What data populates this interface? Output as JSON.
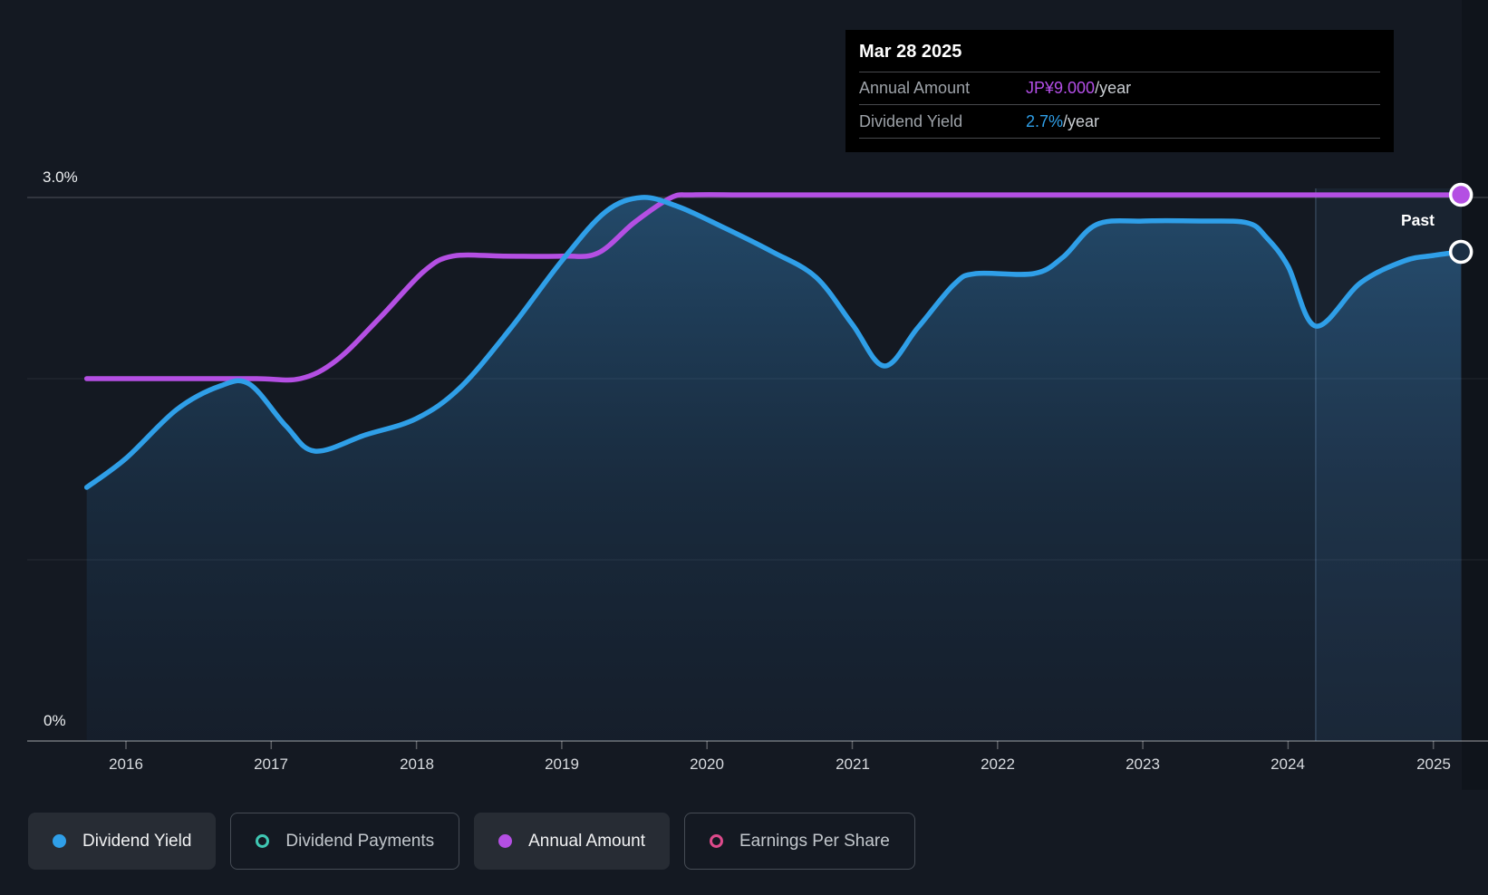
{
  "labels": {
    "past": "Past"
  },
  "tooltip": {
    "date": "Mar 28 2025",
    "rows": [
      {
        "label": "Annual Amount",
        "value": "JP¥9.000",
        "suffix": "/year",
        "color": "#b44fe8"
      },
      {
        "label": "Dividend Yield",
        "value": "2.7%",
        "suffix": "/year",
        "color": "#2f9fe8"
      }
    ]
  },
  "legend": [
    {
      "label": "Dividend Yield",
      "color": "#2f9fe8",
      "marker": "filled",
      "active": true
    },
    {
      "label": "Dividend Payments",
      "color": "#3fc7b3",
      "marker": "hollow",
      "active": false
    },
    {
      "label": "Annual Amount",
      "color": "#b44fe3",
      "marker": "filled",
      "active": true
    },
    {
      "label": "Earnings Per Share",
      "color": "#dd4a8b",
      "marker": "hollow",
      "active": false
    }
  ],
  "chart_data": {
    "type": "area",
    "title": "Dividend history",
    "x_categories": [
      "2016",
      "2017",
      "2018",
      "2019",
      "2020",
      "2021",
      "2022",
      "2023",
      "2024",
      "2025"
    ],
    "x_range": [
      2015.73,
      2025.42
    ],
    "y_axis": {
      "top_label": "3.0%",
      "bottom_label": "0%",
      "min_pct": 0,
      "max_pct": 3.0,
      "gridlines_pct": [
        3.0,
        2.0,
        1.0,
        0
      ]
    },
    "past_divider_year": 2024.19,
    "series": [
      {
        "name": "Dividend Yield",
        "color": "#2f9fe8",
        "unit": "%",
        "points": [
          [
            2015.73,
            1.4
          ],
          [
            2016.0,
            1.56
          ],
          [
            2016.35,
            1.83
          ],
          [
            2016.65,
            1.96
          ],
          [
            2016.85,
            1.97
          ],
          [
            2017.1,
            1.74
          ],
          [
            2017.3,
            1.6
          ],
          [
            2017.65,
            1.69
          ],
          [
            2018.0,
            1.78
          ],
          [
            2018.3,
            1.95
          ],
          [
            2018.65,
            2.28
          ],
          [
            2019.0,
            2.65
          ],
          [
            2019.3,
            2.92
          ],
          [
            2019.55,
            3.0
          ],
          [
            2019.8,
            2.95
          ],
          [
            2020.1,
            2.84
          ],
          [
            2020.45,
            2.7
          ],
          [
            2020.75,
            2.56
          ],
          [
            2021.0,
            2.3
          ],
          [
            2021.22,
            2.07
          ],
          [
            2021.45,
            2.28
          ],
          [
            2021.7,
            2.52
          ],
          [
            2021.85,
            2.58
          ],
          [
            2022.25,
            2.58
          ],
          [
            2022.45,
            2.67
          ],
          [
            2022.68,
            2.85
          ],
          [
            2023.0,
            2.87
          ],
          [
            2023.4,
            2.87
          ],
          [
            2023.72,
            2.86
          ],
          [
            2023.85,
            2.78
          ],
          [
            2024.0,
            2.62
          ],
          [
            2024.19,
            2.29
          ],
          [
            2024.5,
            2.53
          ],
          [
            2024.8,
            2.65
          ],
          [
            2025.0,
            2.68
          ],
          [
            2025.19,
            2.7
          ]
        ]
      },
      {
        "name": "Annual Amount",
        "color": "#b44fe3",
        "unit": "JP¥/year",
        "points": [
          [
            2015.73,
            6
          ],
          [
            2016.4,
            6
          ],
          [
            2016.9,
            6
          ],
          [
            2017.2,
            6
          ],
          [
            2017.45,
            6.3
          ],
          [
            2017.75,
            7
          ],
          [
            2018.05,
            7.75
          ],
          [
            2018.25,
            8
          ],
          [
            2018.6,
            8
          ],
          [
            2019.0,
            8
          ],
          [
            2019.25,
            8.05
          ],
          [
            2019.5,
            8.55
          ],
          [
            2019.75,
            8.95
          ],
          [
            2019.9,
            9
          ],
          [
            2020.3,
            9
          ],
          [
            2021.0,
            9
          ],
          [
            2022.0,
            9
          ],
          [
            2023.0,
            9
          ],
          [
            2024.0,
            9
          ],
          [
            2024.7,
            9
          ],
          [
            2025.19,
            9
          ]
        ]
      }
    ],
    "end_markers": [
      {
        "series": "Annual Amount",
        "year": 2025.19,
        "value": 9
      },
      {
        "series": "Dividend Yield",
        "year": 2025.19,
        "value": 2.7
      }
    ]
  }
}
